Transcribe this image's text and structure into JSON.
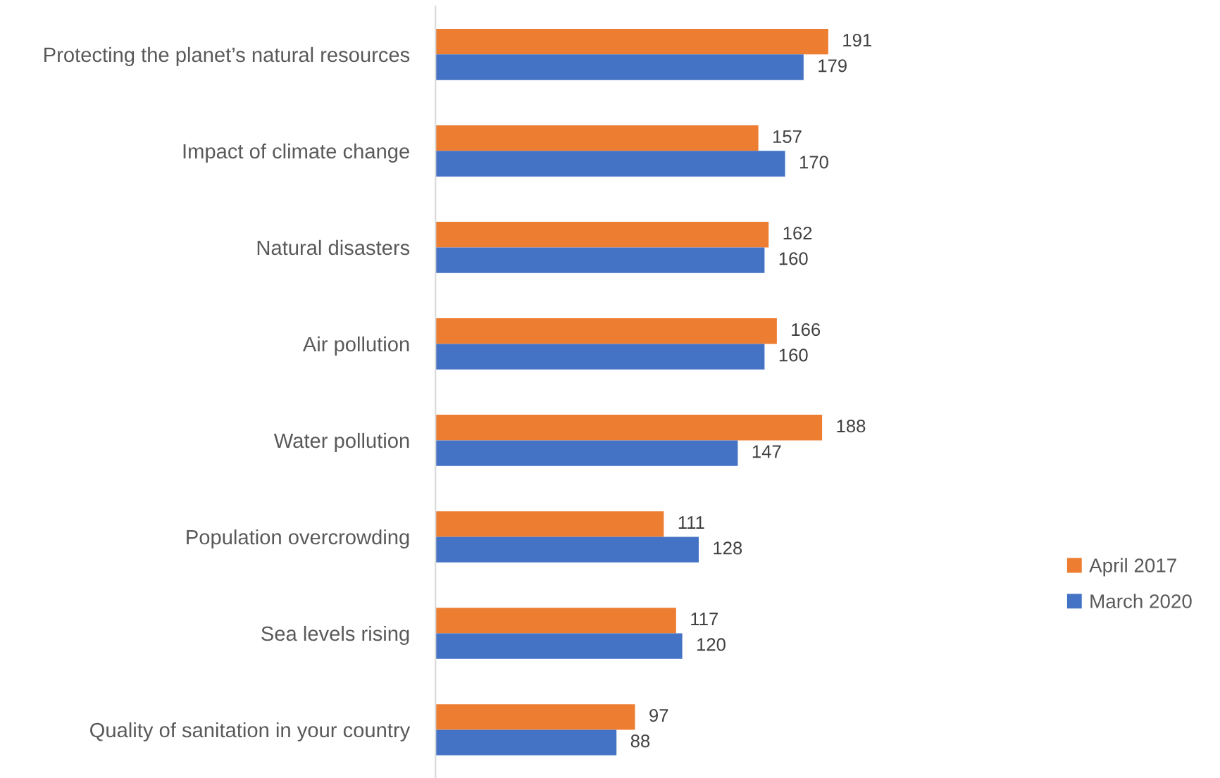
{
  "chart_data": {
    "type": "bar",
    "orientation": "horizontal",
    "categories": [
      "Protecting the planet’s natural resources",
      "Impact of climate change",
      "Natural disasters",
      "Air pollution",
      "Water pollution",
      "Population overcrowding",
      "Sea levels rising",
      "Quality of sanitation in your country"
    ],
    "series": [
      {
        "name": "April 2017",
        "color": "#ed7d31",
        "values": [
          191,
          157,
          162,
          166,
          188,
          111,
          117,
          97
        ]
      },
      {
        "name": "March 2020",
        "color": "#4472c4",
        "values": [
          179,
          170,
          160,
          160,
          147,
          128,
          120,
          88
        ]
      }
    ],
    "data_labels": true,
    "legend": "right",
    "grid": false,
    "tick_labels": "y"
  }
}
